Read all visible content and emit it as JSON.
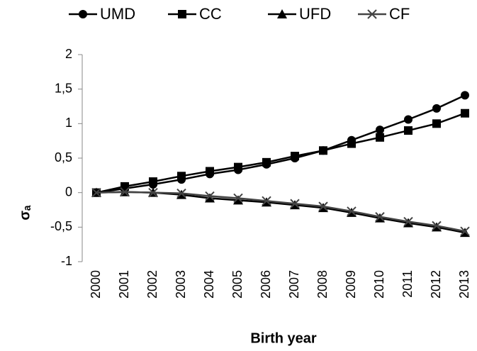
{
  "chart_data": {
    "type": "line",
    "x_label": "Birth year",
    "y_label": "σₐ",
    "categories": [
      "2000",
      "2001",
      "2002",
      "2003",
      "2004",
      "2005",
      "2006",
      "2007",
      "2008",
      "2009",
      "2010",
      "2011",
      "2012",
      "2013"
    ],
    "series": [
      {
        "name": "UMD",
        "color": "#000000",
        "marker": "circle",
        "values": [
          0,
          0.06,
          0.12,
          0.19,
          0.27,
          0.33,
          0.41,
          0.5,
          0.61,
          0.76,
          0.91,
          1.06,
          1.22,
          1.41
        ]
      },
      {
        "name": "CC",
        "color": "#000000",
        "marker": "square",
        "values": [
          0,
          0.09,
          0.16,
          0.24,
          0.31,
          0.37,
          0.44,
          0.53,
          0.61,
          0.71,
          0.8,
          0.9,
          1.0,
          1.15
        ]
      },
      {
        "name": "UFD",
        "color": "#000000",
        "marker": "triangle",
        "values": [
          0,
          0.01,
          0,
          -0.03,
          -0.08,
          -0.11,
          -0.14,
          -0.18,
          -0.22,
          -0.29,
          -0.37,
          -0.44,
          -0.5,
          -0.58
        ]
      },
      {
        "name": "CF",
        "color": "#444444",
        "marker": "x",
        "values": [
          0,
          0.01,
          0,
          -0.01,
          -0.05,
          -0.08,
          -0.12,
          -0.16,
          -0.2,
          -0.27,
          -0.35,
          -0.42,
          -0.48,
          -0.56
        ]
      }
    ],
    "ylim": [
      -1,
      2
    ],
    "yticks": [
      -1,
      {
        "value": -0.5,
        "label": "-0,5"
      },
      0,
      {
        "value": 0.5,
        "label": "0,5"
      },
      1,
      {
        "value": 1.5,
        "label": "1,5"
      },
      2
    ],
    "grid": false,
    "legend": "top"
  }
}
